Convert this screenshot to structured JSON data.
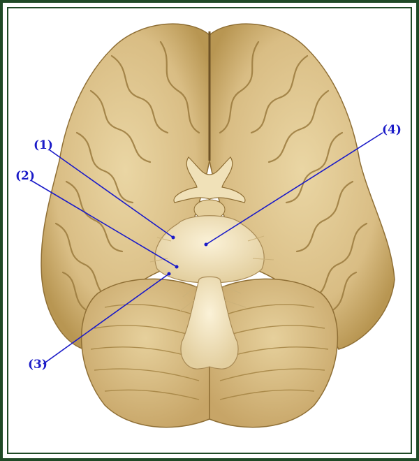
{
  "figure": {
    "callouts": [
      {
        "id": "1",
        "text": "(1)"
      },
      {
        "id": "2",
        "text": "(2)"
      },
      {
        "id": "3",
        "text": "(3)"
      },
      {
        "id": "4",
        "text": "(4)"
      }
    ],
    "colors": {
      "label": "#1a1ac8",
      "frame": "#1f4a26",
      "tissue": "#dcc189",
      "tissue_light": "#eedcb0",
      "tissue_shadow": "#a9894d",
      "brainstem": "#f2e6c4",
      "background": "#ffffff"
    }
  }
}
